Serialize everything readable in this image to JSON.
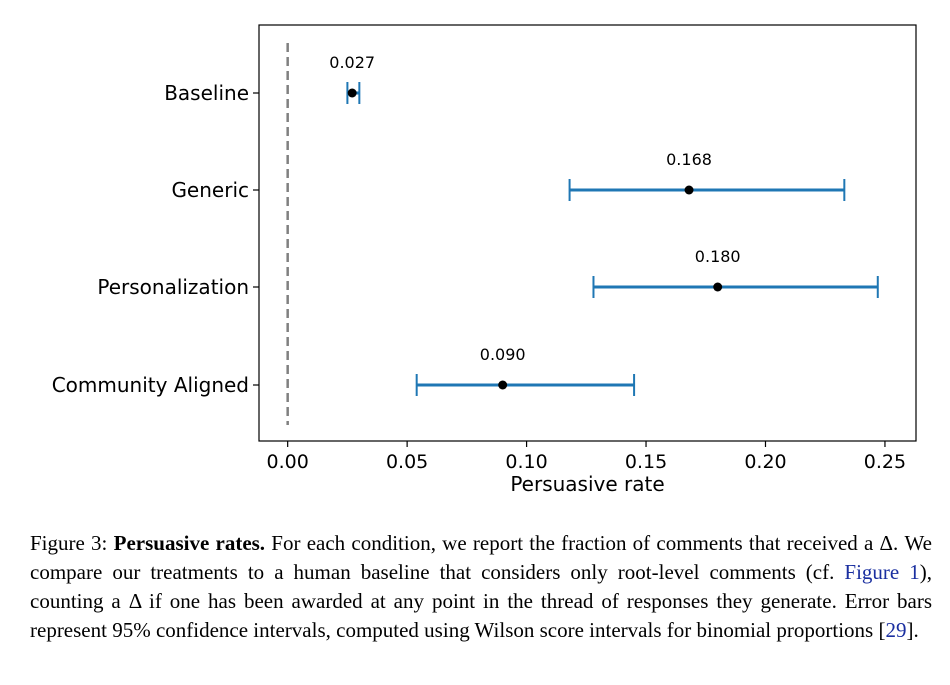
{
  "chart_data": {
    "type": "errorbar",
    "xlabel": "Persuasive rate",
    "xlim": [
      -0.012,
      0.263
    ],
    "xticks": [
      0.0,
      0.05,
      0.1,
      0.15,
      0.2,
      0.25
    ],
    "xtick_labels": [
      "0.00",
      "0.05",
      "0.10",
      "0.15",
      "0.20",
      "0.25"
    ],
    "reference_line": {
      "x": 0.0,
      "style": "dashed",
      "color": "#808080"
    },
    "categories": [
      "Baseline",
      "Generic",
      "Personalization",
      "Community Aligned"
    ],
    "values": [
      0.027,
      0.168,
      0.18,
      0.09
    ],
    "value_labels": [
      "0.027",
      "0.168",
      "0.180",
      "0.090"
    ],
    "ci_low": [
      0.025,
      0.118,
      0.128,
      0.054
    ],
    "ci_high": [
      0.03,
      0.233,
      0.247,
      0.145
    ],
    "errorbar_color": "#1f77b4",
    "point_color": "#000000",
    "grid": false
  },
  "caption": {
    "label": "Figure 3: ",
    "bold_title": "Persuasive rates.",
    "text_1": " For each condition, we report the fraction of comments that received a Δ. We compare our treatments to a human baseline that considers only root-level comments (cf. ",
    "link": "Figure 1",
    "text_2": "), counting a Δ if one has been awarded at any point in the thread of responses they generate. Error bars represent 95% confidence intervals, computed using Wilson score intervals for binomial proportions [",
    "ref": "29",
    "text_3": "]."
  }
}
